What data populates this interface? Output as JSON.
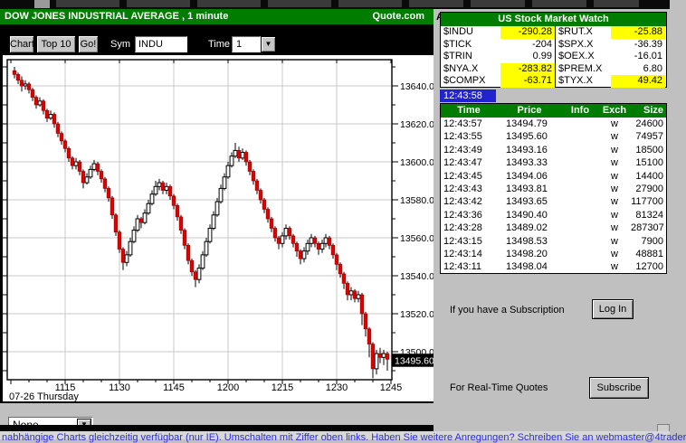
{
  "chart_window": {
    "title": "DOW JONES INDUSTRIAL AVERAGE , 1 minute",
    "provider": "Quote.com",
    "provider_tag": "A",
    "toolbar": {
      "chart_label": "Chart",
      "top10_label": "Top 10",
      "go_label": "Go!",
      "sym_label": "Sym",
      "sym_value": "INDU",
      "time_label": "Time",
      "time_value": "1"
    },
    "overlay_select_value": "None"
  },
  "chart_data": {
    "type": "candlestick",
    "symbol": "INDU",
    "interval": "1 minute",
    "title": "DOW JONES INDUSTRIAL AVERAGE, 1 minute",
    "date_label": "07-26 Thursday",
    "last_price": "13495.60",
    "y_ticks": [
      13500,
      13520,
      13540,
      13560,
      13580,
      13600,
      13620,
      13640
    ],
    "x_ticks": [
      "1115",
      "1130",
      "1145",
      "1200",
      "1215",
      "1230",
      "1245"
    ],
    "ylim": [
      13486,
      13656
    ],
    "grid": true,
    "up_color": "#ffffff",
    "down_color": "#e10000",
    "candles": [
      [
        1101,
        13648,
        13650,
        13644,
        13646
      ],
      [
        1102,
        13646,
        13647,
        13641,
        13643
      ],
      [
        1103,
        13643,
        13645,
        13637,
        13640
      ],
      [
        1104,
        13640,
        13643,
        13638,
        13641
      ],
      [
        1105,
        13641,
        13642,
        13636,
        13638
      ],
      [
        1106,
        13638,
        13639,
        13632,
        13634
      ],
      [
        1107,
        13634,
        13635,
        13628,
        13630
      ],
      [
        1108,
        13630,
        13634,
        13629,
        13632
      ],
      [
        1109,
        13632,
        13633,
        13625,
        13627
      ],
      [
        1110,
        13627,
        13628,
        13621,
        13623
      ],
      [
        1111,
        13623,
        13627,
        13622,
        13625
      ],
      [
        1112,
        13625,
        13626,
        13618,
        13620
      ],
      [
        1113,
        13620,
        13621,
        13613,
        13615
      ],
      [
        1114,
        13615,
        13616,
        13609,
        13611
      ],
      [
        1115,
        13611,
        13612,
        13605,
        13607
      ],
      [
        1116,
        13607,
        13608,
        13600,
        13602
      ],
      [
        1117,
        13602,
        13603,
        13596,
        13598
      ],
      [
        1118,
        13598,
        13602,
        13596,
        13600
      ],
      [
        1119,
        13600,
        13601,
        13593,
        13595
      ],
      [
        1120,
        13595,
        13596,
        13586,
        13589
      ],
      [
        1121,
        13589,
        13594,
        13588,
        13592
      ],
      [
        1122,
        13592,
        13598,
        13591,
        13596
      ],
      [
        1123,
        13596,
        13601,
        13595,
        13599
      ],
      [
        1124,
        13599,
        13600,
        13593,
        13595
      ],
      [
        1125,
        13595,
        13596,
        13589,
        13591
      ],
      [
        1126,
        13591,
        13592,
        13584,
        13586
      ],
      [
        1127,
        13586,
        13587,
        13579,
        13581
      ],
      [
        1128,
        13581,
        13582,
        13570,
        13572
      ],
      [
        1129,
        13572,
        13573,
        13561,
        13563
      ],
      [
        1130,
        13563,
        13564,
        13552,
        13554
      ],
      [
        1131,
        13554,
        13555,
        13543,
        13547
      ],
      [
        1132,
        13547,
        13553,
        13545,
        13551
      ],
      [
        1133,
        13551,
        13560,
        13550,
        13558
      ],
      [
        1134,
        13558,
        13566,
        13557,
        13564
      ],
      [
        1135,
        13564,
        13572,
        13563,
        13570
      ],
      [
        1136,
        13570,
        13571,
        13565,
        13568
      ],
      [
        1137,
        13568,
        13575,
        13567,
        13573
      ],
      [
        1138,
        13573,
        13580,
        13572,
        13578
      ],
      [
        1139,
        13578,
        13585,
        13577,
        13583
      ],
      [
        1140,
        13583,
        13590,
        13582,
        13587
      ],
      [
        1141,
        13587,
        13591,
        13585,
        13589
      ],
      [
        1142,
        13589,
        13590,
        13583,
        13585
      ],
      [
        1143,
        13585,
        13589,
        13583,
        13587
      ],
      [
        1144,
        13587,
        13588,
        13580,
        13582
      ],
      [
        1145,
        13582,
        13583,
        13575,
        13577
      ],
      [
        1146,
        13577,
        13578,
        13569,
        13571
      ],
      [
        1147,
        13571,
        13572,
        13562,
        13564
      ],
      [
        1148,
        13564,
        13565,
        13554,
        13556
      ],
      [
        1149,
        13556,
        13557,
        13546,
        13548
      ],
      [
        1150,
        13548,
        13549,
        13540,
        13542
      ],
      [
        1151,
        13542,
        13543,
        13534,
        13538
      ],
      [
        1152,
        13538,
        13546,
        13536,
        13544
      ],
      [
        1153,
        13544,
        13553,
        13543,
        13551
      ],
      [
        1154,
        13551,
        13560,
        13550,
        13558
      ],
      [
        1155,
        13558,
        13567,
        13557,
        13565
      ],
      [
        1156,
        13565,
        13574,
        13564,
        13572
      ],
      [
        1157,
        13572,
        13581,
        13571,
        13579
      ],
      [
        1158,
        13579,
        13588,
        13578,
        13586
      ],
      [
        1159,
        13586,
        13594,
        13585,
        13592
      ],
      [
        1200,
        13592,
        13600,
        13591,
        13598
      ],
      [
        1201,
        13598,
        13605,
        13597,
        13603
      ],
      [
        1202,
        13603,
        13610,
        13602,
        13606
      ],
      [
        1203,
        13606,
        13608,
        13600,
        13602
      ],
      [
        1204,
        13602,
        13607,
        13601,
        13605
      ],
      [
        1205,
        13605,
        13606,
        13598,
        13600
      ],
      [
        1206,
        13600,
        13601,
        13593,
        13595
      ],
      [
        1207,
        13595,
        13596,
        13588,
        13590
      ],
      [
        1208,
        13590,
        13591,
        13583,
        13585
      ],
      [
        1209,
        13585,
        13586,
        13578,
        13580
      ],
      [
        1210,
        13580,
        13581,
        13573,
        13575
      ],
      [
        1211,
        13575,
        13576,
        13568,
        13570
      ],
      [
        1212,
        13570,
        13571,
        13563,
        13565
      ],
      [
        1213,
        13565,
        13566,
        13558,
        13560
      ],
      [
        1214,
        13560,
        13561,
        13554,
        13557
      ],
      [
        1215,
        13557,
        13563,
        13555,
        13561
      ],
      [
        1216,
        13561,
        13567,
        13559,
        13565
      ],
      [
        1217,
        13565,
        13566,
        13559,
        13561
      ],
      [
        1218,
        13561,
        13562,
        13555,
        13557
      ],
      [
        1219,
        13557,
        13558,
        13550,
        13553
      ],
      [
        1220,
        13553,
        13554,
        13546,
        13549
      ],
      [
        1221,
        13549,
        13555,
        13547,
        13553
      ],
      [
        1222,
        13553,
        13559,
        13551,
        13557
      ],
      [
        1223,
        13557,
        13562,
        13555,
        13560
      ],
      [
        1224,
        13560,
        13561,
        13555,
        13557
      ],
      [
        1225,
        13557,
        13558,
        13551,
        13554
      ],
      [
        1226,
        13554,
        13559,
        13552,
        13557
      ],
      [
        1227,
        13557,
        13562,
        13555,
        13560
      ],
      [
        1228,
        13560,
        13561,
        13554,
        13556
      ],
      [
        1229,
        13556,
        13557,
        13549,
        13551
      ],
      [
        1230,
        13551,
        13552,
        13543,
        13546
      ],
      [
        1231,
        13546,
        13547,
        13539,
        13541
      ],
      [
        1232,
        13541,
        13542,
        13533,
        13536
      ],
      [
        1233,
        13536,
        13537,
        13527,
        13530
      ],
      [
        1234,
        13530,
        13534,
        13527,
        13532
      ],
      [
        1235,
        13532,
        13533,
        13526,
        13528
      ],
      [
        1236,
        13528,
        13532,
        13526,
        13530
      ],
      [
        1237,
        13530,
        13531,
        13514,
        13520
      ],
      [
        1238,
        13520,
        13521,
        13508,
        13512
      ],
      [
        1239,
        13512,
        13513,
        13497,
        13504
      ],
      [
        1240,
        13504,
        13505,
        13486,
        13491
      ],
      [
        1241,
        13491,
        13501,
        13488,
        13499
      ],
      [
        1242,
        13499,
        13502,
        13494,
        13497
      ],
      [
        1243,
        13497,
        13501,
        13493,
        13499
      ],
      [
        1244,
        13499,
        13500,
        13490,
        13496
      ]
    ]
  },
  "watch": {
    "title": "US Stock Market Watch",
    "timestamp": "12:43:58",
    "left": [
      {
        "sym": "$INDU",
        "val": "-290.28",
        "hl": true
      },
      {
        "sym": "$TICK",
        "val": "-204",
        "hl": false
      },
      {
        "sym": "$TRIN",
        "val": "0.99",
        "hl": false
      },
      {
        "sym": "$NYA.X",
        "val": "-283.82",
        "hl": true
      },
      {
        "sym": "$COMPX",
        "val": "-63.71",
        "hl": true
      }
    ],
    "right": [
      {
        "sym": "$RUT.X",
        "val": "-25.88",
        "hl": true
      },
      {
        "sym": "$SPX.X",
        "val": "-36.39",
        "hl": false
      },
      {
        "sym": "$OEX.X",
        "val": "-16.01",
        "hl": false
      },
      {
        "sym": "$PREM.X",
        "val": "6.80",
        "hl": false
      },
      {
        "sym": "$TYX.X",
        "val": "49.42",
        "hl": true
      }
    ]
  },
  "tape": {
    "headers": [
      "Time",
      "Price",
      "Info",
      "Exch",
      "Size"
    ],
    "rows": [
      [
        "12:43:57",
        "13494.79",
        "",
        "w",
        "24600"
      ],
      [
        "12:43:55",
        "13495.60",
        "",
        "w",
        "74957"
      ],
      [
        "12:43:49",
        "13493.16",
        "",
        "w",
        "18500"
      ],
      [
        "12:43:47",
        "13493.33",
        "",
        "w",
        "15100"
      ],
      [
        "12:43:45",
        "13494.06",
        "",
        "w",
        "14400"
      ],
      [
        "12:43:43",
        "13493.81",
        "",
        "w",
        "27900"
      ],
      [
        "12:43:42",
        "13493.65",
        "",
        "w",
        "117700"
      ],
      [
        "12:43:36",
        "13490.40",
        "",
        "w",
        "81324"
      ],
      [
        "12:43:28",
        "13489.02",
        "",
        "w",
        "287307"
      ],
      [
        "12:43:15",
        "13498.53",
        "",
        "w",
        "7900"
      ],
      [
        "12:43:14",
        "13498.20",
        "",
        "w",
        "48881"
      ],
      [
        "12:43:11",
        "13498.04",
        "",
        "w",
        "12700"
      ]
    ]
  },
  "subscription": {
    "login_text": "If you have a Subscription",
    "login_button": "Log In",
    "subscribe_text": "For Real-Time Quotes",
    "subscribe_button": "Subscribe"
  },
  "footer_link": "nabhängige Charts gleichzeitig verfügbar (nur IE). Umschalten mit Ziffer oben links. Haben Sie weitere Anregungen? Schreiben Sie an webmaster@4trader",
  "colors": {
    "green": "#007c00",
    "yellow": "#ffff00",
    "timestamp_blue": "#2323cd",
    "candle_red": "#e10000",
    "window_gray": "#c0c0c0"
  }
}
